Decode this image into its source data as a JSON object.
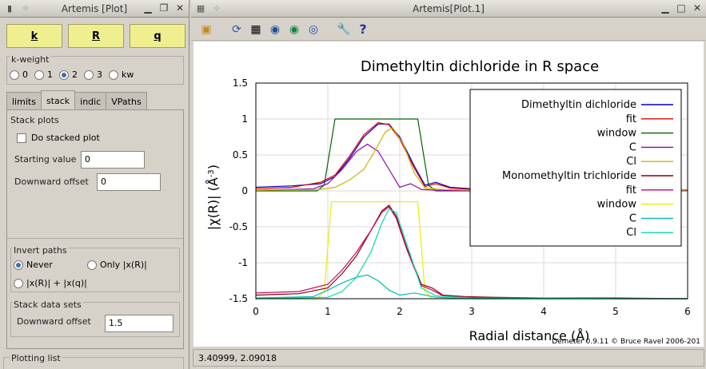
{
  "left_window": {
    "title": "Artemis [Plot]",
    "space_buttons": [
      "k",
      "R",
      "q"
    ],
    "kweight": {
      "label": "k-weight",
      "options": [
        "0",
        "1",
        "2",
        "3",
        "kw"
      ],
      "selected": "2"
    },
    "tabs": [
      "limits",
      "stack",
      "indic",
      "VPaths"
    ],
    "active_tab": "stack",
    "stack_plots": {
      "label": "Stack plots",
      "do_stacked_label": "Do stacked plot",
      "starting_value_label": "Starting value",
      "starting_value": "0",
      "downward_offset_label": "Downward offset",
      "downward_offset": "0"
    },
    "invert_paths": {
      "label": "Invert paths",
      "opt_never": "Never",
      "opt_only": "Only |x(R)|",
      "opt_both": "|x(R)| + |x(q)|",
      "selected": "Never"
    },
    "stack_data_sets": {
      "label": "Stack data sets",
      "downward_offset_label": "Downward offset",
      "downward_offset": "1.5"
    },
    "plotting_list_label": "Plotting list"
  },
  "right_window": {
    "title": "Artemis[Plot.1]",
    "toolbar_icons": [
      "open-folder-icon",
      "refresh-icon",
      "grid-icon",
      "zoom-out-icon",
      "zoom-in-icon",
      "zoom-reset-icon",
      "wrench-icon",
      "help-icon"
    ],
    "help_glyph": "?",
    "status": "3.40999,  2.09018",
    "credit": "Demeter 0.9.11 © Bruce Ravel 2006-201"
  },
  "chart_data": {
    "type": "line",
    "title": "Dimethyltin dichloride in R space",
    "xlabel": "Radial distance    (Å)",
    "ylabel": "|χ(R)|    (Å",
    "ylabel_sup": "-3",
    "ylabel_close": ")",
    "xlim": [
      0,
      6
    ],
    "ylim": [
      -1.5,
      1.5
    ],
    "xticks": [
      "0",
      "1",
      "2",
      "3",
      "4",
      "5",
      "6"
    ],
    "yticks": [
      "1.5",
      "1",
      "0.5",
      "0",
      "-0.5",
      "-1",
      "-1.5"
    ],
    "grid": true,
    "legend_position": "top-right",
    "legend": [
      {
        "name": "Dimethyltin dichloride",
        "color": "#0000cc"
      },
      {
        "name": "fit",
        "color": "#dd0000"
      },
      {
        "name": "window",
        "color": "#006400"
      },
      {
        "name": "C",
        "color": "#9900aa"
      },
      {
        "name": "Cl",
        "color": "#c8b400"
      },
      {
        "name": "Monomethyltin trichloride",
        "color": "#8b0000"
      },
      {
        "name": "fit",
        "color": "#cc0066"
      },
      {
        "name": "window",
        "color": "#eeee00"
      },
      {
        "name": "C",
        "color": "#00bbbb"
      },
      {
        "name": "Cl",
        "color": "#00ddaa"
      }
    ],
    "series": [
      {
        "color": "#006400",
        "x": [
          0,
          0.85,
          0.95,
          1.1,
          2.25,
          2.4,
          2.5,
          6
        ],
        "y": [
          0,
          0,
          0.08,
          1.0,
          1.0,
          0.08,
          0,
          0
        ]
      },
      {
        "color": "#0000cc",
        "x": [
          0,
          0.5,
          0.9,
          1.1,
          1.3,
          1.5,
          1.7,
          1.85,
          2.0,
          2.2,
          2.35,
          2.5,
          2.7,
          3.0,
          3.5,
          4,
          5,
          6
        ],
        "y": [
          0.05,
          0.07,
          0.1,
          0.2,
          0.45,
          0.75,
          0.93,
          0.93,
          0.75,
          0.35,
          0.08,
          0.12,
          0.05,
          0.03,
          0.02,
          0.02,
          0.01,
          0.01
        ]
      },
      {
        "color": "#dd0000",
        "x": [
          0,
          0.5,
          0.9,
          1.1,
          1.3,
          1.5,
          1.7,
          1.85,
          2.0,
          2.2,
          2.35,
          2.5,
          2.7,
          3.0,
          3.5,
          4,
          5,
          6
        ],
        "y": [
          0.03,
          0.05,
          0.12,
          0.22,
          0.48,
          0.78,
          0.95,
          0.92,
          0.72,
          0.32,
          0.06,
          0.1,
          0.04,
          0.02,
          0.02,
          0.01,
          0.01,
          0.0
        ]
      },
      {
        "color": "#9900aa",
        "x": [
          0,
          0.8,
          1.0,
          1.2,
          1.4,
          1.55,
          1.7,
          1.85,
          2.0,
          2.15,
          2.3,
          2.5,
          3,
          6
        ],
        "y": [
          0.01,
          0.03,
          0.1,
          0.3,
          0.55,
          0.65,
          0.55,
          0.3,
          0.05,
          0.1,
          0.02,
          0.01,
          0.0,
          0.0
        ]
      },
      {
        "color": "#c8b400",
        "x": [
          0,
          0.9,
          1.1,
          1.3,
          1.5,
          1.65,
          1.8,
          1.9,
          2.05,
          2.2,
          2.35,
          2.6,
          3,
          6
        ],
        "y": [
          0.01,
          0.02,
          0.05,
          0.15,
          0.3,
          0.55,
          0.82,
          0.88,
          0.65,
          0.25,
          0.04,
          0.02,
          0.01,
          0.0
        ]
      },
      {
        "color": "#eeee00",
        "x": [
          0,
          0.85,
          0.95,
          1.05,
          2.25,
          2.35,
          2.45,
          6
        ],
        "y": [
          -1.5,
          -1.5,
          -1.4,
          -0.15,
          -0.15,
          -1.4,
          -1.5,
          -1.5
        ]
      },
      {
        "color": "#8b0000",
        "x": [
          0,
          0.6,
          1.0,
          1.2,
          1.4,
          1.6,
          1.75,
          1.85,
          1.95,
          2.1,
          2.3,
          2.45,
          2.6,
          2.9,
          3.3,
          4,
          5,
          6
        ],
        "y": [
          -1.45,
          -1.43,
          -1.35,
          -1.15,
          -0.9,
          -0.55,
          -0.28,
          -0.2,
          -0.35,
          -0.8,
          -1.3,
          -1.35,
          -1.45,
          -1.47,
          -1.48,
          -1.49,
          -1.49,
          -1.5
        ]
      },
      {
        "color": "#cc0066",
        "x": [
          0,
          0.6,
          1.0,
          1.2,
          1.4,
          1.6,
          1.75,
          1.85,
          1.95,
          2.1,
          2.3,
          2.45,
          2.6,
          2.9,
          3.3,
          4,
          5,
          6
        ],
        "y": [
          -1.42,
          -1.4,
          -1.3,
          -1.1,
          -0.85,
          -0.55,
          -0.3,
          -0.22,
          -0.38,
          -0.82,
          -1.32,
          -1.38,
          -1.46,
          -1.48,
          -1.49,
          -1.49,
          -1.5,
          -1.5
        ]
      },
      {
        "color": "#00bbbb",
        "x": [
          0,
          0.8,
          1.0,
          1.2,
          1.4,
          1.55,
          1.7,
          1.85,
          2.0,
          2.2,
          2.5,
          3,
          6
        ],
        "y": [
          -1.49,
          -1.47,
          -1.38,
          -1.28,
          -1.2,
          -1.17,
          -1.25,
          -1.38,
          -1.45,
          -1.42,
          -1.48,
          -1.5,
          -1.5
        ]
      },
      {
        "color": "#00ddaa",
        "x": [
          0,
          1.0,
          1.2,
          1.4,
          1.6,
          1.75,
          1.85,
          1.95,
          2.1,
          2.3,
          2.5,
          3,
          6
        ],
        "y": [
          -1.5,
          -1.48,
          -1.4,
          -1.2,
          -0.85,
          -0.45,
          -0.25,
          -0.3,
          -0.75,
          -1.35,
          -1.46,
          -1.49,
          -1.5
        ]
      }
    ]
  }
}
